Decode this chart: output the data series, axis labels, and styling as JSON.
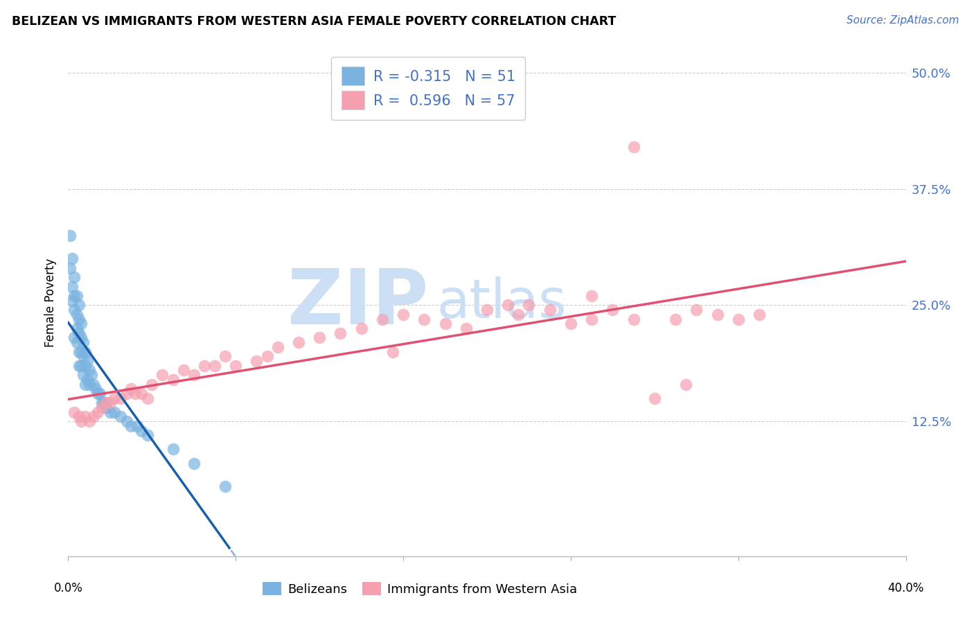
{
  "title": "BELIZEAN VS IMMIGRANTS FROM WESTERN ASIA FEMALE POVERTY CORRELATION CHART",
  "source": "Source: ZipAtlas.com",
  "ylabel": "Female Poverty",
  "yticks": [
    0.0,
    0.125,
    0.25,
    0.375,
    0.5
  ],
  "ytick_labels": [
    "",
    "12.5%",
    "25.0%",
    "37.5%",
    "50.0%"
  ],
  "xmin": 0.0,
  "xmax": 0.4,
  "ymin": -0.02,
  "ymax": 0.525,
  "legend_label1": "Belizeans",
  "legend_label2": "Immigrants from Western Asia",
  "R1": -0.315,
  "N1": 51,
  "R2": 0.596,
  "N2": 57,
  "color1": "#7ab3e0",
  "color2": "#f4a0b0",
  "line_color1": "#1a5fa8",
  "line_color2": "#e05070",
  "watermark_color": "#ccdff5",
  "blue_dots_x": [
    0.001,
    0.001,
    0.002,
    0.002,
    0.002,
    0.003,
    0.003,
    0.003,
    0.003,
    0.004,
    0.004,
    0.004,
    0.004,
    0.005,
    0.005,
    0.005,
    0.005,
    0.005,
    0.006,
    0.006,
    0.006,
    0.006,
    0.007,
    0.007,
    0.007,
    0.008,
    0.008,
    0.008,
    0.009,
    0.009,
    0.01,
    0.01,
    0.011,
    0.012,
    0.013,
    0.014,
    0.015,
    0.016,
    0.017,
    0.018,
    0.02,
    0.022,
    0.025,
    0.028,
    0.03,
    0.033,
    0.035,
    0.038,
    0.05,
    0.06,
    0.075
  ],
  "blue_dots_y": [
    0.325,
    0.29,
    0.3,
    0.27,
    0.255,
    0.28,
    0.26,
    0.245,
    0.215,
    0.26,
    0.24,
    0.225,
    0.21,
    0.25,
    0.235,
    0.22,
    0.2,
    0.185,
    0.23,
    0.215,
    0.2,
    0.185,
    0.21,
    0.195,
    0.175,
    0.2,
    0.185,
    0.165,
    0.19,
    0.17,
    0.18,
    0.165,
    0.175,
    0.165,
    0.16,
    0.155,
    0.155,
    0.145,
    0.145,
    0.14,
    0.135,
    0.135,
    0.13,
    0.125,
    0.12,
    0.12,
    0.115,
    0.11,
    0.095,
    0.08,
    0.055
  ],
  "pink_dots_x": [
    0.003,
    0.005,
    0.006,
    0.008,
    0.01,
    0.012,
    0.014,
    0.016,
    0.018,
    0.02,
    0.022,
    0.025,
    0.028,
    0.03,
    0.032,
    0.035,
    0.038,
    0.04,
    0.045,
    0.05,
    0.055,
    0.06,
    0.065,
    0.07,
    0.075,
    0.08,
    0.09,
    0.095,
    0.1,
    0.11,
    0.12,
    0.13,
    0.14,
    0.15,
    0.155,
    0.16,
    0.17,
    0.18,
    0.19,
    0.2,
    0.21,
    0.215,
    0.22,
    0.23,
    0.24,
    0.25,
    0.26,
    0.27,
    0.28,
    0.29,
    0.295,
    0.3,
    0.31,
    0.32,
    0.25,
    0.33,
    0.27
  ],
  "pink_dots_y": [
    0.135,
    0.13,
    0.125,
    0.13,
    0.125,
    0.13,
    0.135,
    0.14,
    0.145,
    0.145,
    0.15,
    0.15,
    0.155,
    0.16,
    0.155,
    0.155,
    0.15,
    0.165,
    0.175,
    0.17,
    0.18,
    0.175,
    0.185,
    0.185,
    0.195,
    0.185,
    0.19,
    0.195,
    0.205,
    0.21,
    0.215,
    0.22,
    0.225,
    0.235,
    0.2,
    0.24,
    0.235,
    0.23,
    0.225,
    0.245,
    0.25,
    0.24,
    0.25,
    0.245,
    0.23,
    0.235,
    0.245,
    0.235,
    0.15,
    0.235,
    0.165,
    0.245,
    0.24,
    0.235,
    0.26,
    0.24,
    0.42
  ],
  "xtick_positions": [
    0.0,
    0.08,
    0.16,
    0.24,
    0.32,
    0.4
  ]
}
